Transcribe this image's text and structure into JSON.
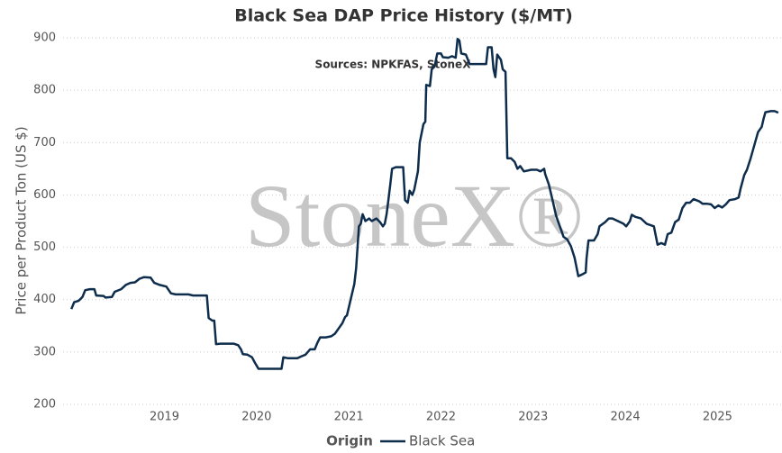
{
  "chart_data": {
    "type": "line",
    "title": "Black Sea DAP Price History ($/MT)",
    "subtitle": "Sources: NPKFAS, StoneX",
    "watermark": "StoneX®",
    "y_label": "Price per Product Ton (US $)",
    "legend_title": "Origin",
    "xlim": [
      2017.9,
      2025.7
    ],
    "xticks": [
      2019,
      2020,
      2021,
      2022,
      2023,
      2024,
      2025
    ],
    "ylim": [
      200,
      900
    ],
    "yticks": [
      200,
      300,
      400,
      500,
      600,
      700,
      800,
      900
    ],
    "grid": true,
    "x": [
      2017.99,
      2018.02,
      2018.07,
      2018.11,
      2018.14,
      2018.19,
      2018.24,
      2018.26,
      2018.34,
      2018.36,
      2018.43,
      2018.46,
      2018.53,
      2018.58,
      2018.63,
      2018.68,
      2018.73,
      2018.78,
      2018.85,
      2018.89,
      2018.95,
      2019.02,
      2019.07,
      2019.12,
      2019.26,
      2019.31,
      2019.46,
      2019.48,
      2019.52,
      2019.54,
      2019.56,
      2019.61,
      2019.75,
      2019.8,
      2019.83,
      2019.85,
      2019.9,
      2019.95,
      2019.98,
      2020.02,
      2020.14,
      2020.27,
      2020.29,
      2020.34,
      2020.44,
      2020.49,
      2020.53,
      2020.58,
      2020.63,
      2020.66,
      2020.69,
      2020.75,
      2020.81,
      2020.85,
      2020.89,
      2020.93,
      2020.96,
      2020.98,
      2021.02,
      2021.06,
      2021.08,
      2021.11,
      2021.13,
      2021.15,
      2021.18,
      2021.22,
      2021.25,
      2021.3,
      2021.34,
      2021.37,
      2021.39,
      2021.41,
      2021.43,
      2021.45,
      2021.47,
      2021.51,
      2021.59,
      2021.61,
      2021.64,
      2021.66,
      2021.69,
      2021.71,
      2021.75,
      2021.77,
      2021.81,
      2021.83,
      2021.84,
      2021.88,
      2021.9,
      2021.93,
      2021.96,
      2022.0,
      2022.02,
      2022.08,
      2022.12,
      2022.16,
      2022.18,
      2022.2,
      2022.22,
      2022.27,
      2022.31,
      2022.49,
      2022.51,
      2022.55,
      2022.57,
      2022.59,
      2022.61,
      2022.65,
      2022.67,
      2022.7,
      2022.72,
      2022.76,
      2022.8,
      2022.83,
      2022.86,
      2022.9,
      2022.98,
      2023.04,
      2023.08,
      2023.12,
      2023.13,
      2023.17,
      2023.21,
      2023.25,
      2023.29,
      2023.33,
      2023.37,
      2023.41,
      2023.45,
      2023.49,
      2023.53,
      2023.57,
      2023.58,
      2023.6,
      2023.66,
      2023.7,
      2023.72,
      2023.78,
      2023.82,
      2023.86,
      2023.92,
      2023.98,
      2024.01,
      2024.05,
      2024.07,
      2024.11,
      2024.17,
      2024.23,
      2024.31,
      2024.35,
      2024.39,
      2024.43,
      2024.46,
      2024.5,
      2024.54,
      2024.58,
      2024.62,
      2024.66,
      2024.7,
      2024.74,
      2024.8,
      2024.84,
      2024.89,
      2024.93,
      2024.97,
      2025.01,
      2025.05,
      2025.09,
      2025.13,
      2025.19,
      2025.23,
      2025.25,
      2025.29,
      2025.32,
      2025.36,
      2025.4,
      2025.44,
      2025.48,
      2025.5,
      2025.52,
      2025.58,
      2025.62,
      2025.66
    ],
    "series": [
      {
        "name": "Black Sea",
        "color": "#0e2d4c",
        "values": [
          382,
          395,
          398,
          405,
          418,
          420,
          420,
          408,
          407,
          404,
          405,
          415,
          420,
          428,
          432,
          433,
          440,
          443,
          442,
          432,
          428,
          425,
          412,
          410,
          410,
          408,
          408,
          365,
          360,
          360,
          315,
          316,
          316,
          313,
          305,
          296,
          295,
          290,
          280,
          268,
          268,
          268,
          290,
          288,
          288,
          292,
          295,
          305,
          305,
          318,
          328,
          328,
          330,
          335,
          345,
          355,
          367,
          370,
          400,
          430,
          460,
          540,
          545,
          563,
          550,
          555,
          550,
          555,
          548,
          540,
          545,
          563,
          590,
          620,
          650,
          653,
          653,
          590,
          585,
          608,
          600,
          610,
          645,
          700,
          735,
          740,
          810,
          808,
          840,
          845,
          870,
          870,
          863,
          862,
          865,
          862,
          898,
          895,
          870,
          868,
          850,
          850,
          882,
          882,
          840,
          825,
          868,
          858,
          840,
          835,
          670,
          670,
          663,
          650,
          655,
          645,
          648,
          648,
          645,
          650,
          640,
          620,
          590,
          560,
          540,
          520,
          515,
          502,
          480,
          445,
          448,
          452,
          480,
          513,
          513,
          525,
          540,
          548,
          555,
          555,
          550,
          545,
          540,
          550,
          562,
          558,
          555,
          545,
          540,
          505,
          508,
          505,
          525,
          528,
          548,
          553,
          575,
          585,
          585,
          592,
          588,
          583,
          583,
          582,
          575,
          580,
          576,
          582,
          590,
          592,
          595,
          612,
          638,
          648,
          670,
          695,
          720,
          730,
          745,
          758,
          760,
          760,
          757
        ]
      }
    ]
  }
}
